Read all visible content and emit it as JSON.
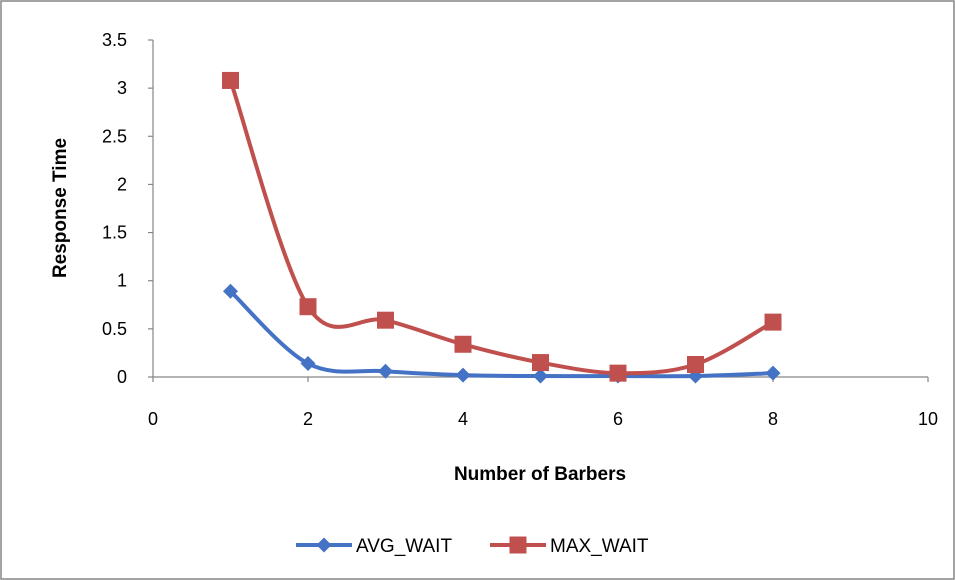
{
  "chart_data": {
    "type": "scatter",
    "xlabel": "Number of Barbers",
    "ylabel": "Response Time",
    "xlim": [
      0,
      10
    ],
    "ylim": [
      0,
      3.5
    ],
    "x_ticks": [
      "0",
      "2",
      "4",
      "6",
      "8",
      "10"
    ],
    "y_ticks": [
      "0",
      "0.5",
      "1",
      "1.5",
      "2",
      "2.5",
      "3",
      "3.5"
    ],
    "grid": false,
    "smoothed_lines": true,
    "legend_position": "bottom",
    "series": [
      {
        "name": "AVG_WAIT",
        "color": "#4472C4",
        "marker": "diamond",
        "x": [
          1,
          2,
          3,
          4,
          5,
          6,
          7,
          8
        ],
        "y": [
          0.89,
          0.14,
          0.06,
          0.02,
          0.01,
          0.01,
          0.01,
          0.04
        ]
      },
      {
        "name": "MAX_WAIT",
        "color": "#C0504D",
        "marker": "square",
        "x": [
          1,
          2,
          3,
          4,
          5,
          6,
          7,
          8
        ],
        "y": [
          3.08,
          0.73,
          0.59,
          0.34,
          0.15,
          0.04,
          0.13,
          0.57
        ]
      }
    ]
  }
}
